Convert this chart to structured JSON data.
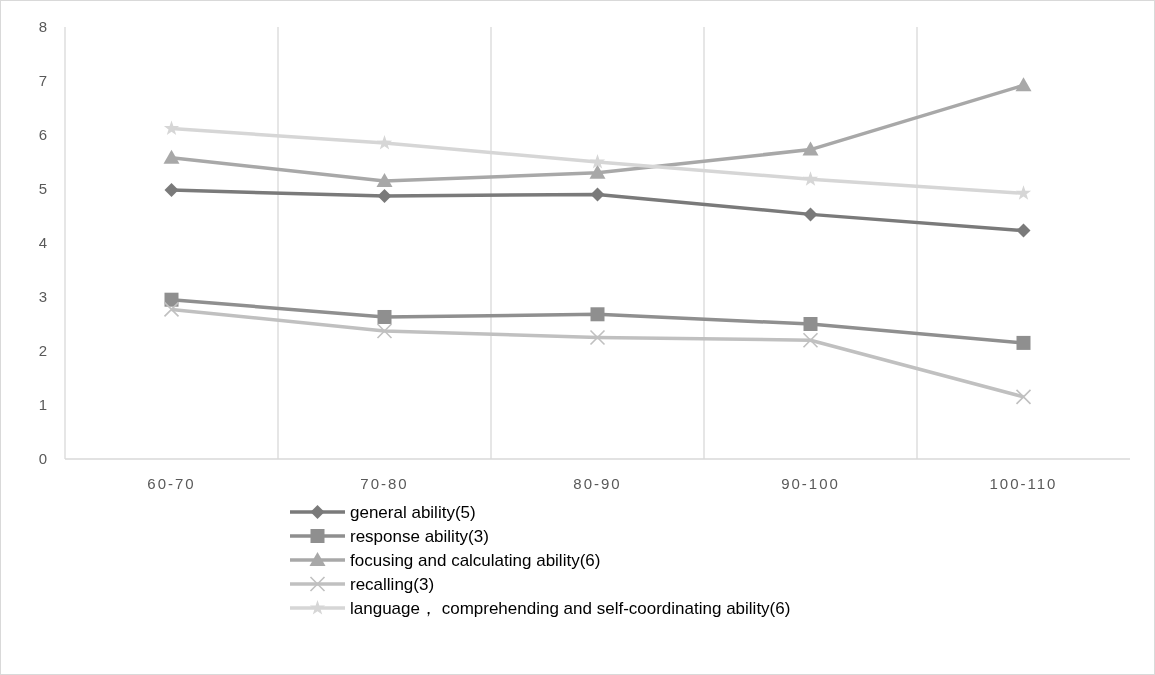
{
  "chart_data": {
    "type": "line",
    "categories": [
      "60-70",
      "70-80",
      "80-90",
      "90-100",
      "100-110"
    ],
    "series": [
      {
        "name": "general ability(5)",
        "color": "#7a7a7a",
        "marker": "diamond",
        "values": [
          4.98,
          4.87,
          4.9,
          4.53,
          4.23
        ]
      },
      {
        "name": "response ability(3)",
        "color": "#8f8f8f",
        "marker": "square",
        "values": [
          2.95,
          2.63,
          2.68,
          2.5,
          2.15
        ]
      },
      {
        "name": "focusing and calculating ability(6)",
        "color": "#a8a8a8",
        "marker": "triangle",
        "values": [
          5.58,
          5.15,
          5.3,
          5.73,
          6.92
        ]
      },
      {
        "name": "recalling(3)",
        "color": "#c0c0c0",
        "marker": "cross",
        "values": [
          2.77,
          2.37,
          2.25,
          2.2,
          1.15
        ]
      },
      {
        "name": "language， comprehending and self-coordinating ability(6)",
        "color": "#d6d6d6",
        "marker": "star",
        "values": [
          6.12,
          5.85,
          5.5,
          5.18,
          4.92
        ]
      }
    ],
    "ylim": [
      0,
      8
    ],
    "yticks": [
      0,
      1,
      2,
      3,
      4,
      5,
      6,
      7,
      8
    ],
    "grid": "x",
    "legend": "bottom",
    "line_style": "solid"
  }
}
